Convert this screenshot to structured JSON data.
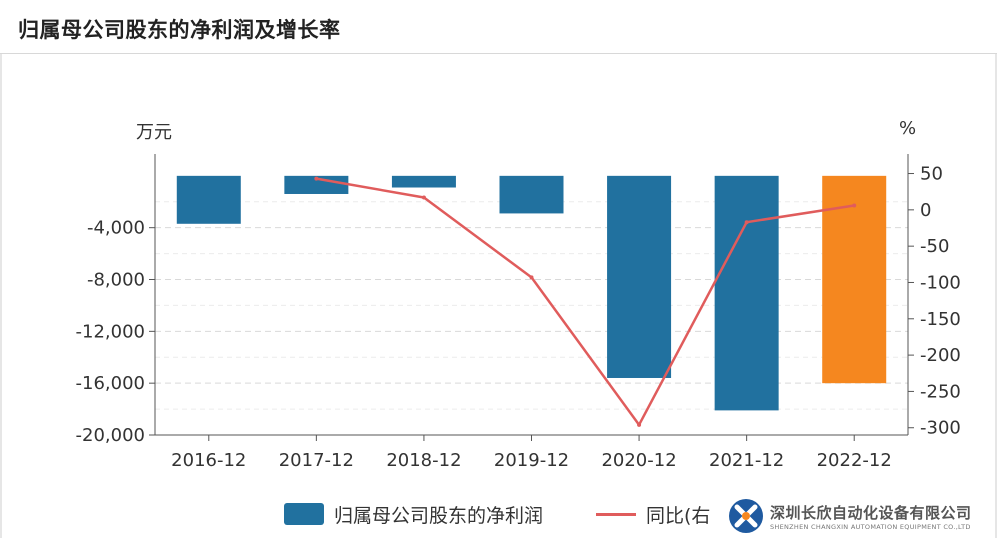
{
  "header": {
    "title": "归属母公司股东的净利润及增长率"
  },
  "units": {
    "left": "万元",
    "right": "%"
  },
  "legend": {
    "bar_label": "归属母公司股东的净利润",
    "line_label": "同比(右"
  },
  "watermark": {
    "name": "深圳长欣自动化设备有限公司",
    "sub": "SHENZHEN CHANGXIN AUTOMATION EQUIPMENT CO.,LTD"
  },
  "colors": {
    "bar": "#21719f",
    "bar_highlight": "#f5871f",
    "line": "#e05c5c",
    "grid": "#d9d9d9"
  },
  "chart_data": {
    "type": "bar",
    "categories": [
      "2016-12",
      "2017-12",
      "2018-12",
      "2019-12",
      "2020-12",
      "2021-12",
      "2022-12"
    ],
    "series": [
      {
        "name": "归属母公司股东的净利润",
        "axis": "left",
        "values": [
          -3700,
          -1400,
          -900,
          -2900,
          -15600,
          -18100,
          -16000
        ],
        "highlight_index": 6
      },
      {
        "name": "同比(右",
        "axis": "right",
        "type": "line",
        "values": [
          null,
          43,
          17,
          -93,
          -296,
          -17,
          6
        ]
      }
    ],
    "left_axis": {
      "ylim": [
        -20000,
        1300
      ],
      "ticks": [
        -4000,
        -8000,
        -12000,
        -16000,
        -20000
      ],
      "tick_labels": [
        "-4,000",
        "-8,000",
        "-12,000",
        "-16,000",
        "-20,000"
      ]
    },
    "right_axis": {
      "ylim": [
        -310,
        70
      ],
      "ticks": [
        50,
        0,
        -50,
        -100,
        -150,
        -200,
        -250,
        -300
      ],
      "tick_labels": [
        "50",
        "0",
        "-50",
        "-100",
        "-150",
        "-200",
        "-250",
        "-300"
      ]
    },
    "grid": true,
    "legend_position": "bottom"
  }
}
